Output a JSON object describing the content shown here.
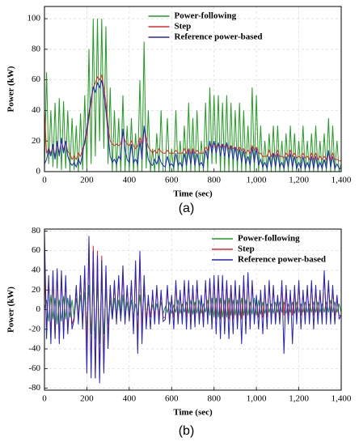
{
  "chart_data": [
    {
      "type": "line",
      "caption": "(a)",
      "xlabel": "Time (sec)",
      "ylabel": "Power (kW)",
      "xlim": [
        0,
        1400
      ],
      "ylim": [
        0,
        108
      ],
      "xticks": [
        0,
        200,
        400,
        600,
        800,
        {
          "value": 1000,
          "label": "1,000"
        },
        {
          "value": 1200,
          "label": "1,200"
        },
        {
          "value": 1400,
          "label": "1,400"
        }
      ],
      "yticks": [
        0,
        20,
        40,
        60,
        80,
        100
      ],
      "grid": true,
      "legend": "upper center",
      "x": [
        0,
        10,
        20,
        30,
        40,
        50,
        60,
        70,
        80,
        90,
        100,
        110,
        120,
        130,
        140,
        150,
        160,
        170,
        180,
        190,
        200,
        210,
        220,
        230,
        240,
        250,
        260,
        270,
        280,
        290,
        300,
        310,
        320,
        330,
        340,
        350,
        360,
        370,
        380,
        390,
        400,
        410,
        420,
        430,
        440,
        450,
        460,
        470,
        480,
        490,
        500,
        510,
        520,
        530,
        540,
        550,
        560,
        570,
        580,
        590,
        600,
        610,
        620,
        630,
        640,
        650,
        660,
        670,
        680,
        690,
        700,
        710,
        720,
        730,
        740,
        750,
        760,
        770,
        780,
        790,
        800,
        810,
        820,
        830,
        840,
        850,
        860,
        870,
        880,
        890,
        900,
        910,
        920,
        930,
        940,
        950,
        960,
        970,
        980,
        990,
        1000,
        1010,
        1020,
        1030,
        1040,
        1050,
        1060,
        1070,
        1080,
        1090,
        1100,
        1110,
        1120,
        1130,
        1140,
        1150,
        1160,
        1170,
        1180,
        1190,
        1200,
        1210,
        1220,
        1230,
        1240,
        1250,
        1260,
        1270,
        1280,
        1290,
        1300,
        1310,
        1320,
        1330,
        1340,
        1350,
        1360,
        1370,
        1380,
        1390,
        1400
      ],
      "series": [
        {
          "name": "Power-following",
          "color": "#1e9e1e",
          "values": [
            0,
            65,
            5,
            40,
            3,
            45,
            2,
            48,
            1,
            46,
            2,
            40,
            0,
            35,
            1,
            30,
            0,
            38,
            1,
            50,
            2,
            80,
            5,
            100,
            10,
            100,
            20,
            100,
            15,
            95,
            5,
            55,
            0,
            40,
            0,
            35,
            0,
            50,
            0,
            30,
            0,
            35,
            0,
            25,
            0,
            60,
            0,
            85,
            2,
            40,
            0,
            15,
            0,
            25,
            0,
            40,
            0,
            0,
            35,
            0,
            15,
            0,
            40,
            0,
            20,
            0,
            30,
            0,
            45,
            0,
            35,
            0,
            40,
            0,
            20,
            0,
            45,
            0,
            55,
            5,
            50,
            5,
            50,
            0,
            45,
            0,
            50,
            0,
            45,
            0,
            40,
            0,
            45,
            0,
            40,
            0,
            30,
            0,
            55,
            0,
            50,
            0,
            30,
            0,
            20,
            0,
            25,
            0,
            30,
            0,
            30,
            0,
            20,
            0,
            25,
            0,
            30,
            0,
            25,
            0,
            20,
            0,
            30,
            0,
            20,
            0,
            25,
            0,
            30,
            0,
            20,
            0,
            25,
            0,
            35,
            0,
            30,
            0,
            20,
            0,
            5
          ]
        },
        {
          "name": "Step",
          "color": "#e8262a",
          "values": [
            40,
            12,
            15,
            12,
            16,
            10,
            18,
            12,
            20,
            14,
            20,
            13,
            12,
            8,
            10,
            8,
            12,
            10,
            15,
            18,
            25,
            35,
            45,
            55,
            58,
            62,
            60,
            63,
            55,
            45,
            30,
            20,
            18,
            17,
            18,
            17,
            18,
            25,
            20,
            18,
            17,
            20,
            17,
            15,
            17,
            22,
            18,
            28,
            22,
            16,
            14,
            12,
            14,
            12,
            15,
            13,
            12,
            12,
            14,
            12,
            12,
            12,
            14,
            12,
            12,
            12,
            15,
            12,
            15,
            12,
            15,
            12,
            14,
            12,
            12,
            12,
            16,
            14,
            18,
            16,
            19,
            16,
            18,
            16,
            18,
            16,
            18,
            15,
            17,
            15,
            16,
            14,
            16,
            14,
            15,
            12,
            14,
            12,
            17,
            14,
            16,
            12,
            12,
            10,
            10,
            10,
            14,
            10,
            12,
            10,
            14,
            10,
            10,
            9,
            12,
            10,
            14,
            10,
            12,
            9,
            10,
            9,
            12,
            9,
            10,
            8,
            12,
            8,
            12,
            8,
            10,
            8,
            10,
            8,
            12,
            8,
            12,
            8,
            8,
            7,
            7
          ]
        },
        {
          "name": "Reference power-based",
          "color": "#2222cc",
          "values": [
            5,
            8,
            15,
            10,
            18,
            8,
            20,
            10,
            22,
            12,
            20,
            10,
            6,
            4,
            6,
            3,
            8,
            5,
            12,
            20,
            28,
            38,
            48,
            55,
            52,
            58,
            55,
            60,
            50,
            40,
            25,
            10,
            6,
            8,
            5,
            10,
            8,
            28,
            15,
            8,
            6,
            18,
            6,
            8,
            5,
            20,
            8,
            30,
            18,
            8,
            5,
            4,
            8,
            5,
            10,
            6,
            4,
            3,
            10,
            4,
            5,
            3,
            12,
            4,
            6,
            3,
            12,
            4,
            14,
            5,
            14,
            4,
            12,
            4,
            6,
            3,
            14,
            8,
            20,
            12,
            20,
            12,
            19,
            10,
            18,
            10,
            19,
            9,
            17,
            8,
            16,
            7,
            15,
            6,
            14,
            5,
            10,
            4,
            16,
            6,
            15,
            4,
            8,
            3,
            6,
            2,
            10,
            3,
            12,
            3,
            12,
            3,
            6,
            2,
            10,
            3,
            12,
            3,
            10,
            2,
            6,
            2,
            10,
            2,
            6,
            2,
            10,
            2,
            10,
            2,
            6,
            2,
            8,
            2,
            14,
            3,
            10,
            2,
            5,
            2,
            2
          ]
        }
      ]
    },
    {
      "type": "line",
      "caption": "(b)",
      "xlabel": "Time (sec)",
      "ylabel": "Power (kW)",
      "xlim": [
        0,
        1400
      ],
      "ylim": [
        -82,
        82
      ],
      "xticks": [
        0,
        200,
        400,
        600,
        800,
        {
          "value": 1000,
          "label": "1,000"
        },
        {
          "value": 1200,
          "label": "1,200"
        },
        {
          "value": 1400,
          "label": "1,400"
        }
      ],
      "yticks": [
        -80,
        -60,
        -40,
        -20,
        0,
        20,
        40,
        60,
        80
      ],
      "grid": true,
      "legend": "upper right",
      "x": [
        0,
        10,
        20,
        30,
        40,
        50,
        60,
        70,
        80,
        90,
        100,
        110,
        120,
        130,
        140,
        150,
        160,
        170,
        180,
        190,
        200,
        210,
        220,
        230,
        240,
        250,
        260,
        270,
        280,
        290,
        300,
        310,
        320,
        330,
        340,
        350,
        360,
        370,
        380,
        390,
        400,
        410,
        420,
        430,
        440,
        450,
        460,
        470,
        480,
        490,
        500,
        510,
        520,
        530,
        540,
        550,
        560,
        570,
        580,
        590,
        600,
        610,
        620,
        630,
        640,
        650,
        660,
        670,
        680,
        690,
        700,
        710,
        720,
        730,
        740,
        750,
        760,
        770,
        780,
        790,
        800,
        810,
        820,
        830,
        840,
        850,
        860,
        870,
        880,
        890,
        900,
        910,
        920,
        930,
        940,
        950,
        960,
        970,
        980,
        990,
        1000,
        1010,
        1020,
        1030,
        1040,
        1050,
        1060,
        1070,
        1080,
        1090,
        1100,
        1110,
        1120,
        1130,
        1140,
        1150,
        1160,
        1170,
        1180,
        1190,
        1200,
        1210,
        1220,
        1230,
        1240,
        1250,
        1260,
        1270,
        1280,
        1290,
        1300,
        1310,
        1320,
        1330,
        1340,
        1350,
        1360,
        1370,
        1380,
        1390,
        1400
      ],
      "series": [
        {
          "name": "Power-following",
          "color": "#1e9e1e",
          "values": [
            0,
            10,
            -12,
            15,
            -10,
            12,
            -15,
            10,
            -12,
            14,
            -10,
            12,
            -8,
            10,
            -8,
            12,
            -10,
            15,
            -12,
            18,
            -20,
            25,
            -25,
            30,
            -30,
            28,
            -35,
            30,
            -25,
            20,
            -15,
            10,
            -10,
            12,
            -8,
            10,
            -10,
            15,
            -10,
            8,
            -8,
            10,
            -8,
            6,
            -6,
            15,
            -10,
            20,
            -12,
            10,
            -6,
            5,
            -4,
            6,
            -5,
            8,
            -4,
            3,
            -3,
            8,
            -4,
            5,
            -3,
            10,
            -4,
            6,
            -3,
            8,
            -4,
            10,
            -5,
            8,
            -4,
            10,
            -4,
            6,
            -3,
            10,
            -6,
            12,
            -8,
            12,
            -8,
            12,
            -8,
            10,
            -8,
            12,
            -6,
            10,
            -6,
            10,
            -6,
            12,
            -6,
            10,
            -6,
            8,
            -5,
            12,
            -6,
            10,
            -5,
            8,
            -4,
            6,
            -3,
            6,
            -4,
            8,
            -3,
            8,
            -3,
            8,
            -4,
            6,
            -3,
            8,
            -4,
            8,
            -3,
            6,
            -3,
            8,
            -3,
            6,
            -3,
            8,
            -3,
            8,
            -3,
            6,
            -3,
            8,
            -3,
            10,
            -3,
            8,
            -3,
            6,
            -3
          ]
        },
        {
          "name": "Step",
          "color": "#e8262a",
          "values": [
            40,
            -20,
            30,
            -25,
            35,
            -28,
            38,
            -30,
            35,
            -25,
            30,
            -20,
            10,
            -15,
            -8,
            20,
            -10,
            30,
            -15,
            40,
            -40,
            70,
            -60,
            65,
            -70,
            60,
            -70,
            55,
            -60,
            40,
            -30,
            20,
            -8,
            25,
            -10,
            30,
            -8,
            35,
            -10,
            20,
            -8,
            25,
            -20,
            40,
            -30,
            55,
            -20,
            30,
            -10,
            10,
            -8,
            15,
            -8,
            20,
            -8,
            15,
            -8,
            -8,
            20,
            -8,
            10,
            -8,
            25,
            -8,
            15,
            -8,
            25,
            -8,
            25,
            -8,
            20,
            -8,
            25,
            -8,
            12,
            -8,
            25,
            -8,
            30,
            -8,
            30,
            -10,
            32,
            -10,
            30,
            -10,
            28,
            -10,
            25,
            -10,
            25,
            -10,
            20,
            -10,
            30,
            -10,
            32,
            -10,
            25,
            -8,
            10,
            -8,
            15,
            -8,
            20,
            -8,
            25,
            -8,
            20,
            -8,
            10,
            -6,
            25,
            -6,
            20,
            -6,
            15,
            -6,
            20,
            -6,
            25,
            -6,
            15,
            -6,
            20,
            -6,
            25,
            -6,
            20,
            -6,
            15,
            -6,
            35,
            -6,
            25,
            -6,
            20,
            -6,
            10,
            -6,
            -6
          ]
        },
        {
          "name": "Reference power-based",
          "color": "#2222cc",
          "values": [
            80,
            -30,
            35,
            -35,
            40,
            -30,
            42,
            -35,
            40,
            -30,
            35,
            -25,
            15,
            -20,
            -10,
            25,
            -15,
            35,
            -20,
            45,
            -65,
            75,
            -70,
            60,
            -70,
            55,
            -75,
            50,
            -65,
            45,
            -40,
            25,
            -10,
            30,
            -15,
            35,
            -12,
            45,
            -15,
            25,
            -12,
            30,
            -25,
            50,
            -45,
            60,
            -35,
            35,
            -20,
            15,
            -20,
            20,
            -15,
            25,
            -15,
            20,
            -12,
            -10,
            25,
            -15,
            15,
            -20,
            30,
            -15,
            20,
            -15,
            30,
            -20,
            30,
            -20,
            25,
            -18,
            30,
            -15,
            15,
            -18,
            30,
            -15,
            32,
            -20,
            35,
            -25,
            35,
            -30,
            35,
            -25,
            30,
            -30,
            25,
            -25,
            30,
            -20,
            25,
            -35,
            35,
            -25,
            38,
            -20,
            30,
            -15,
            15,
            -20,
            20,
            -25,
            25,
            -20,
            30,
            -15,
            25,
            -15,
            15,
            -15,
            30,
            -45,
            25,
            -15,
            20,
            -35,
            25,
            -15,
            30,
            -20,
            20,
            -15,
            25,
            -15,
            30,
            -20,
            25,
            -15,
            20,
            -15,
            40,
            -15,
            30,
            -15,
            25,
            -15,
            15,
            -10,
            -5
          ]
        }
      ]
    }
  ]
}
